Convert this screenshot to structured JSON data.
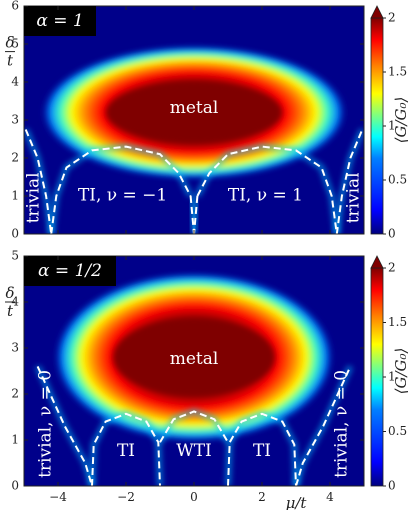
{
  "chart_data": [
    {
      "type": "heatmap",
      "badge": "α = 1",
      "xlim": [
        -5,
        5
      ],
      "ylim": [
        0,
        6
      ],
      "x_ticks": [],
      "y_ticks": [
        "0",
        "1",
        "2",
        "3",
        "4",
        "5",
        "6"
      ],
      "ylabel_num": "δ",
      "ylabel_den": "t",
      "colorbar_label": "⟨G/G₀⟩",
      "colorbar_range": [
        0,
        2
      ],
      "colorbar_ticks": [
        "0",
        "0.5",
        "1",
        "1.5",
        "2"
      ],
      "colors": [
        "#00007f",
        "#0000ff",
        "#007fff",
        "#00ffff",
        "#7fff7f",
        "#ffff00",
        "#ff7f00",
        "#ff0000",
        "#7f0000"
      ],
      "regions": [
        {
          "label": "metal",
          "x": 0,
          "y": 3.3
        },
        {
          "label": "TI, ν = −1",
          "x": -2.1,
          "y": 1.0
        },
        {
          "label": "TI, ν = 1",
          "x": 2.1,
          "y": 1.0
        },
        {
          "label": "trivial",
          "x": -4.7,
          "y": 0.95,
          "rotate": -90
        },
        {
          "label": "trivial",
          "x": 4.7,
          "y": 0.95,
          "rotate": -90
        }
      ],
      "phase_boundaries": [
        [
          [
            -4.95,
            2.75
          ],
          [
            -4.6,
            2.0
          ],
          [
            -4.35,
            1.0
          ],
          [
            -4.2,
            0.0
          ]
        ],
        [
          [
            -4.2,
            0.0
          ],
          [
            -4.05,
            1.0
          ],
          [
            -3.75,
            1.75
          ],
          [
            -3.0,
            2.2
          ],
          [
            -2.0,
            2.3
          ],
          [
            -1.0,
            2.1
          ],
          [
            -0.45,
            1.6
          ],
          [
            -0.1,
            1.0
          ]
        ],
        [
          [
            0.1,
            1.0
          ],
          [
            0.45,
            1.6
          ],
          [
            1.0,
            2.1
          ],
          [
            2.0,
            2.3
          ],
          [
            3.0,
            2.2
          ],
          [
            3.75,
            1.75
          ],
          [
            4.05,
            1.0
          ],
          [
            4.2,
            0.0
          ]
        ],
        [
          [
            4.2,
            0.0
          ],
          [
            4.35,
            1.0
          ],
          [
            4.6,
            2.0
          ],
          [
            4.95,
            2.75
          ]
        ],
        [
          [
            -0.1,
            1.0
          ],
          [
            0.0,
            0.0
          ]
        ],
        [
          [
            0.1,
            1.0
          ],
          [
            0.0,
            0.0
          ]
        ]
      ],
      "metal_blob": {
        "cx": 0,
        "cy": 3.2,
        "rx": 3.6,
        "ry": 1.1
      }
    },
    {
      "type": "heatmap",
      "badge": "α = 1/2",
      "xlim": [
        -5,
        5
      ],
      "ylim": [
        0,
        5
      ],
      "x_ticks": [
        "−4",
        "−2",
        "0",
        "2",
        "4"
      ],
      "x_tick_values": [
        -4,
        -2,
        0,
        2,
        4
      ],
      "y_ticks": [
        "0",
        "1",
        "2",
        "3",
        "4",
        "5"
      ],
      "xlabel_num": "μ",
      "xlabel_den": "t",
      "ylabel_num": "δ",
      "ylabel_den": "t",
      "colorbar_label": "⟨G/G₀⟩",
      "colorbar_range": [
        0,
        2
      ],
      "colorbar_ticks": [
        "0",
        "0.5",
        "1",
        "1.5",
        "2"
      ],
      "colors": [
        "#00007f",
        "#0000ff",
        "#007fff",
        "#00ffff",
        "#7fff7f",
        "#ffff00",
        "#ff7f00",
        "#ff0000",
        "#7f0000"
      ],
      "regions": [
        {
          "label": "metal",
          "x": 0,
          "y": 2.75
        },
        {
          "label": "TI",
          "x": -2.0,
          "y": 0.75
        },
        {
          "label": "WTI",
          "x": 0,
          "y": 0.75
        },
        {
          "label": "TI",
          "x": 2.0,
          "y": 0.75
        },
        {
          "label": "trivial, ν = 0",
          "x": -4.35,
          "y": 1.35,
          "rotate": -90
        },
        {
          "label": "trivial, ν = 0",
          "x": 4.35,
          "y": 1.35,
          "rotate": -90
        }
      ],
      "phase_boundaries": [
        [
          [
            -4.6,
            2.6
          ],
          [
            -3.8,
            1.3
          ],
          [
            -3.2,
            0.5
          ],
          [
            -3.0,
            0.0
          ]
        ],
        [
          [
            -3.0,
            0.0
          ],
          [
            -2.95,
            0.9
          ],
          [
            -2.6,
            1.4
          ],
          [
            -2.0,
            1.57
          ],
          [
            -1.4,
            1.4
          ],
          [
            -1.05,
            0.95
          ],
          [
            -1.0,
            0.0
          ]
        ],
        [
          [
            -1.0,
            0.95
          ],
          [
            -0.6,
            1.45
          ],
          [
            0.0,
            1.62
          ],
          [
            0.6,
            1.45
          ],
          [
            1.0,
            0.95
          ]
        ],
        [
          [
            1.0,
            0.0
          ],
          [
            1.05,
            0.95
          ],
          [
            1.4,
            1.4
          ],
          [
            2.0,
            1.57
          ],
          [
            2.6,
            1.4
          ],
          [
            2.95,
            0.9
          ],
          [
            3.0,
            0.0
          ]
        ],
        [
          [
            3.0,
            0.0
          ],
          [
            3.2,
            0.5
          ],
          [
            3.8,
            1.3
          ],
          [
            4.6,
            2.6
          ]
        ]
      ],
      "metal_blob": {
        "cx": 0,
        "cy": 2.8,
        "rx": 3.3,
        "ry": 1.15
      }
    }
  ]
}
